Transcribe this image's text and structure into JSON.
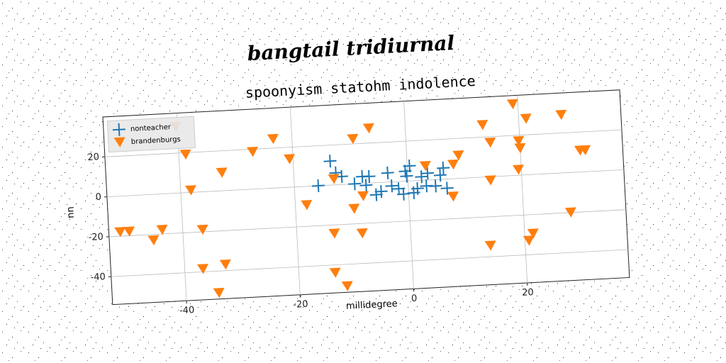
{
  "chart_data": {
    "type": "scatter",
    "suptitle": "bangtail tridiurnal",
    "title": "spoonyism statohm indolence",
    "xlabel": "millidegree",
    "ylabel": "nn",
    "xlim": [
      -53,
      38
    ],
    "ylim": [
      -54,
      40
    ],
    "xticks": [
      -40,
      -20,
      0,
      20
    ],
    "yticks": [
      -40,
      -20,
      0,
      20
    ],
    "grid": true,
    "legend": "upper left",
    "series": [
      {
        "name": "nonteacher",
        "color": "#1f77b4",
        "marker": "plus",
        "x": [
          -15.8,
          -13.5,
          -12.6,
          -11.6,
          -9.4,
          -8,
          -7.4,
          -6.8,
          -5.7,
          -4.8,
          -3.5,
          -2.9,
          -1.7,
          -0.9,
          -0.2,
          0.4,
          0.9,
          1.6,
          2.4,
          3.2,
          3.5,
          4.8,
          5.7,
          6.3,
          6.8,
          -0.4
        ],
        "values": [
          0,
          12,
          6,
          4,
          0,
          3.5,
          -1,
          3.3,
          -6,
          -4.5,
          4.6,
          -2,
          -3.6,
          -6.4,
          2.5,
          7.5,
          -6,
          -4,
          1.8,
          -2.9,
          3.4,
          -3.2,
          2.1,
          5.6,
          -4.6,
          5
        ]
      },
      {
        "name": "brandenburgs",
        "color": "#ff7f0e",
        "marker": "triangle_down",
        "x": [
          -40.3,
          -38.8,
          -38.2,
          -32.6,
          -27,
          -23.3,
          -20.6,
          -51,
          -49.4,
          -45.2,
          -43.6,
          -36.5,
          -36.8,
          -32.8,
          -34.2,
          -18,
          -13.6,
          -11.6,
          -13.4,
          -13,
          -8.5,
          -9.7,
          -9.3,
          -6.4,
          -8,
          3.2,
          7.8,
          8.1,
          9.1,
          13.6,
          14.8,
          14.5,
          13.9,
          19.1,
          21.3,
          19.8,
          20,
          19.5,
          21.5,
          20.7,
          27.5,
          30.5,
          31.4,
          28.3
        ],
        "values": [
          33,
          19,
          1,
          9,
          18.6,
          24.5,
          14,
          -18,
          -18,
          -23,
          -18,
          -19,
          -38.6,
          -37,
          -51,
          -9.4,
          -44,
          -51,
          -24.4,
          2.9,
          -25,
          -12.5,
          22.4,
          27.3,
          -6.4,
          7,
          -9,
          7,
          11.4,
          26,
          17,
          -1.9,
          -34.5,
          35.6,
          28,
          17,
          13.4,
          2.7,
          -29.6,
          -33,
          29,
          10.7,
          10.7,
          -20
        ]
      }
    ]
  }
}
